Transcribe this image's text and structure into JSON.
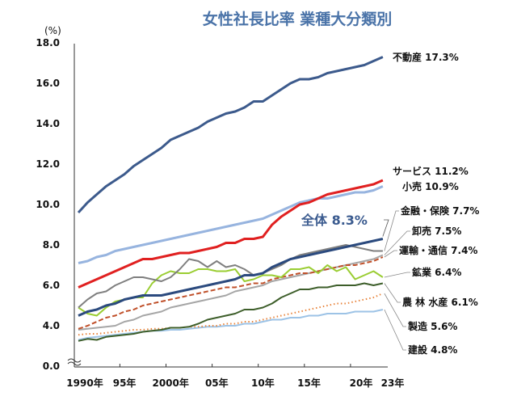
{
  "chart_data": {
    "type": "line",
    "title": "女性社長比率 業種大分類別",
    "ylabel": "(%)",
    "xlabel": "",
    "ylim": [
      0,
      18
    ],
    "y_ticks": [
      "0.0",
      "4.0",
      "6.0",
      "8.0",
      "10.0",
      "12.0",
      "14.0",
      "16.0",
      "18.0"
    ],
    "y_axis_break": "between 0.0 and 4.0",
    "x_tick_labels": [
      "1990年",
      "95年",
      "2000年",
      "05年",
      "10年",
      "15年",
      "20年",
      "23年"
    ],
    "x": [
      1990,
      1991,
      1992,
      1993,
      1994,
      1995,
      1996,
      1997,
      1998,
      1999,
      2000,
      2001,
      2002,
      2003,
      2004,
      2005,
      2006,
      2007,
      2008,
      2009,
      2010,
      2011,
      2012,
      2013,
      2014,
      2015,
      2016,
      2017,
      2018,
      2019,
      2020,
      2021,
      2022,
      2023
    ],
    "grid": false,
    "legend": "direct labels at right end of lines",
    "series": [
      {
        "name": "不動産",
        "label": "不動産 17.3%",
        "color": "#3c5a8c",
        "style": "solid",
        "width": 3,
        "values": [
          9.6,
          10.1,
          10.5,
          10.9,
          11.2,
          11.5,
          11.9,
          12.2,
          12.5,
          12.8,
          13.2,
          13.4,
          13.6,
          13.8,
          14.1,
          14.3,
          14.5,
          14.6,
          14.8,
          15.1,
          15.1,
          15.4,
          15.7,
          16.0,
          16.2,
          16.2,
          16.3,
          16.5,
          16.6,
          16.7,
          16.8,
          16.9,
          17.1,
          17.3
        ]
      },
      {
        "name": "サービス",
        "label": "サービス 11.2%",
        "color": "#e02020",
        "style": "solid",
        "width": 3,
        "values": [
          5.9,
          6.1,
          6.3,
          6.5,
          6.7,
          6.9,
          7.1,
          7.3,
          7.3,
          7.4,
          7.5,
          7.6,
          7.6,
          7.7,
          7.8,
          7.9,
          8.1,
          8.1,
          8.3,
          8.3,
          8.4,
          9.0,
          9.4,
          9.7,
          10.0,
          10.1,
          10.3,
          10.5,
          10.6,
          10.7,
          10.8,
          10.9,
          11.0,
          11.2
        ]
      },
      {
        "name": "小売",
        "label": "小売 10.9%",
        "color": "#97b4df",
        "style": "solid",
        "width": 3,
        "values": [
          7.1,
          7.2,
          7.4,
          7.5,
          7.7,
          7.8,
          7.9,
          8.0,
          8.1,
          8.2,
          8.3,
          8.4,
          8.5,
          8.6,
          8.7,
          8.8,
          8.9,
          9.0,
          9.1,
          9.2,
          9.3,
          9.5,
          9.7,
          9.9,
          10.1,
          10.2,
          10.3,
          10.3,
          10.4,
          10.5,
          10.6,
          10.6,
          10.7,
          10.9
        ]
      },
      {
        "name": "全体",
        "label": "全体 8.3%",
        "color": "#2b4a7e",
        "style": "solid",
        "width": 3,
        "values": [
          4.5,
          4.7,
          4.8,
          5.0,
          5.1,
          5.3,
          5.4,
          5.5,
          5.5,
          5.5,
          5.6,
          5.7,
          5.8,
          5.9,
          6.0,
          6.1,
          6.2,
          6.3,
          6.5,
          6.5,
          6.6,
          6.9,
          7.1,
          7.3,
          7.4,
          7.5,
          7.6,
          7.7,
          7.8,
          7.9,
          8.0,
          8.1,
          8.2,
          8.3
        ]
      },
      {
        "name": "金融・保険",
        "label": "金融・保険 7.7%",
        "color": "#7f7f7f",
        "style": "solid",
        "width": 2,
        "values": [
          4.9,
          5.3,
          5.6,
          5.7,
          6.0,
          6.2,
          6.4,
          6.4,
          6.3,
          6.2,
          6.4,
          6.8,
          7.3,
          7.2,
          6.9,
          7.2,
          6.9,
          7.0,
          6.8,
          6.5,
          6.6,
          6.8,
          7.0,
          7.3,
          7.5,
          7.6,
          7.7,
          7.8,
          7.9,
          8.0,
          7.9,
          7.8,
          7.7,
          7.7
        ]
      },
      {
        "name": "卸売",
        "label": "卸売 7.5%",
        "color": "#a6a6a6",
        "style": "solid",
        "width": 2,
        "values": [
          3.6,
          3.7,
          3.8,
          3.9,
          4.0,
          4.2,
          4.3,
          4.5,
          4.6,
          4.7,
          4.9,
          5.0,
          5.1,
          5.2,
          5.3,
          5.4,
          5.5,
          5.7,
          5.8,
          5.9,
          6.0,
          6.2,
          6.3,
          6.4,
          6.5,
          6.6,
          6.7,
          6.8,
          6.9,
          7.0,
          7.1,
          7.2,
          7.3,
          7.5
        ]
      },
      {
        "name": "運輸・通信",
        "label": "運輸・通信 7.4%",
        "color": "#c0502a",
        "style": "dashed",
        "width": 2,
        "values": [
          3.7,
          4.0,
          4.2,
          4.4,
          4.5,
          4.7,
          4.8,
          5.0,
          5.1,
          5.2,
          5.3,
          5.4,
          5.5,
          5.6,
          5.7,
          5.8,
          5.9,
          5.9,
          6.0,
          6.1,
          6.1,
          6.3,
          6.4,
          6.5,
          6.6,
          6.6,
          6.7,
          6.8,
          6.9,
          7.0,
          7.0,
          7.1,
          7.2,
          7.4
        ]
      },
      {
        "name": "鉱業",
        "label": "鉱業 6.4%",
        "color": "#9acd32",
        "style": "solid",
        "width": 2,
        "values": [
          4.9,
          4.6,
          4.5,
          4.9,
          5.2,
          5.3,
          5.4,
          5.4,
          6.1,
          6.5,
          6.7,
          6.6,
          6.6,
          6.8,
          6.8,
          6.7,
          6.7,
          6.8,
          6.2,
          6.3,
          6.5,
          6.5,
          6.4,
          6.8,
          6.8,
          6.9,
          6.6,
          7.0,
          6.7,
          6.9,
          6.3,
          6.5,
          6.7,
          6.4
        ]
      },
      {
        "name": "農林水産",
        "label": "農 林 水産 6.1%",
        "color": "#3d5e2a",
        "style": "solid",
        "width": 2,
        "values": [
          2.5,
          2.7,
          2.6,
          2.9,
          3.0,
          3.1,
          3.2,
          3.4,
          3.5,
          3.6,
          3.8,
          3.8,
          3.9,
          4.1,
          4.3,
          4.4,
          4.5,
          4.6,
          4.8,
          4.8,
          4.9,
          5.1,
          5.4,
          5.6,
          5.8,
          5.8,
          5.9,
          5.9,
          6.0,
          6.0,
          6.0,
          6.1,
          6.0,
          6.1
        ]
      },
      {
        "name": "製造",
        "label": "製造 5.6%",
        "color": "#e8843c",
        "style": "dotted",
        "width": 2,
        "values": [
          3.1,
          3.2,
          3.2,
          3.3,
          3.4,
          3.5,
          3.6,
          3.6,
          3.7,
          3.7,
          3.8,
          3.8,
          3.9,
          3.9,
          4.0,
          4.0,
          4.1,
          4.1,
          4.2,
          4.2,
          4.3,
          4.4,
          4.5,
          4.6,
          4.7,
          4.8,
          4.9,
          5.0,
          5.1,
          5.1,
          5.2,
          5.3,
          5.4,
          5.6
        ]
      },
      {
        "name": "建設",
        "label": "建設 4.8%",
        "color": "#9dc3e6",
        "style": "solid",
        "width": 2,
        "values": [
          2.6,
          2.8,
          2.9,
          3.0,
          3.1,
          3.2,
          3.3,
          3.4,
          3.5,
          3.5,
          3.6,
          3.6,
          3.7,
          3.8,
          3.9,
          3.9,
          4.0,
          4.0,
          4.1,
          4.1,
          4.2,
          4.3,
          4.3,
          4.4,
          4.4,
          4.5,
          4.5,
          4.6,
          4.6,
          4.6,
          4.7,
          4.7,
          4.7,
          4.8
        ]
      }
    ]
  }
}
